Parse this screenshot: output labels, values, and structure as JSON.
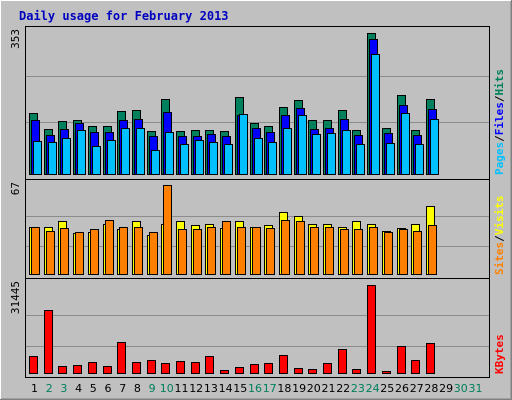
{
  "chart_data": {
    "type": "bar",
    "title": "Daily usage for February 2013",
    "days": [
      "1",
      "2",
      "3",
      "4",
      "5",
      "6",
      "7",
      "8",
      "9",
      "10",
      "11",
      "12",
      "13",
      "14",
      "15",
      "16",
      "17",
      "18",
      "19",
      "20",
      "21",
      "22",
      "23",
      "24",
      "25",
      "26",
      "27",
      "28",
      "29",
      "30",
      "31"
    ],
    "weekend_days": [
      2,
      3,
      9,
      10,
      16,
      17,
      23,
      24,
      30,
      31
    ],
    "colors": {
      "hits": "#00805c",
      "files": "#0000ff",
      "pages": "#00c0ff",
      "visits": "#ffff00",
      "sites": "#ff8000",
      "kbytes": "#ff0000",
      "weekday": "#000000",
      "weekend": "#00805c"
    },
    "panels": {
      "top": {
        "max_label": "353",
        "legend": {
          "pages": "Pages",
          "sep1": "/",
          "files": "Files",
          "sep2": "/",
          "hits": "Hits"
        },
        "series": [
          {
            "name": "Hits",
            "values": [
              155,
              115,
              133,
              137,
              123,
              123,
              160,
              162,
              110,
              188,
              110,
              111,
              113,
              110,
              195,
              130,
              122,
              170,
              187,
              137,
              136,
              162,
              113,
              353,
              117,
              198,
              113,
              188
            ]
          },
          {
            "name": "Files",
            "values": [
              137,
              100,
              115,
              130,
              107,
              108,
              137,
              138,
              97,
              157,
              97,
              98,
              103,
              98,
              150,
              118,
              108,
              150,
              167,
              115,
              117,
              138,
              100,
              338,
              105,
              173,
              100,
              163
            ]
          },
          {
            "name": "Pages",
            "values": [
              85,
              83,
              93,
              113,
              73,
              87,
              117,
              117,
              63,
              107,
              78,
              86,
              83,
              76,
              152,
              93,
              83,
              118,
              150,
              103,
              105,
              113,
              78,
              300,
              80,
              153,
              76,
              140
            ]
          }
        ]
      },
      "middle": {
        "max_label": "67",
        "legend": {
          "sites": "Sites",
          "sep": "/",
          "visits": "Visits"
        },
        "series": [
          {
            "name": "Visits",
            "values": [
              36,
              36,
              40,
              31,
              32,
              38,
              34,
              40,
              30,
              38,
              40,
              37,
              38,
              35,
              40,
              36,
              37,
              47,
              44,
              38,
              38,
              36,
              40,
              38,
              33,
              35,
              38,
              51
            ]
          },
          {
            "name": "Sites",
            "values": [
              36,
              33,
              35,
              32,
              34,
              41,
              36,
              36,
              32,
              67,
              34,
              34,
              36,
              40,
              36,
              36,
              35,
              41,
              40,
              36,
              36,
              34,
              34,
              36,
              32,
              34,
              33,
              37
            ]
          }
        ]
      },
      "bottom": {
        "max_label": "31445",
        "legend": {
          "kbytes": "KBytes"
        },
        "series": [
          {
            "name": "KBytes",
            "values": [
              6500,
              22600,
              2800,
              3200,
              4200,
              2700,
              11300,
              4400,
              4900,
              4000,
              4500,
              4200,
              6200,
              1300,
              2600,
              3600,
              3800,
              6700,
              2200,
              1900,
              3800,
              8900,
              1800,
              31445,
              1200,
              10000,
              5000,
              11000
            ]
          }
        ]
      }
    }
  }
}
